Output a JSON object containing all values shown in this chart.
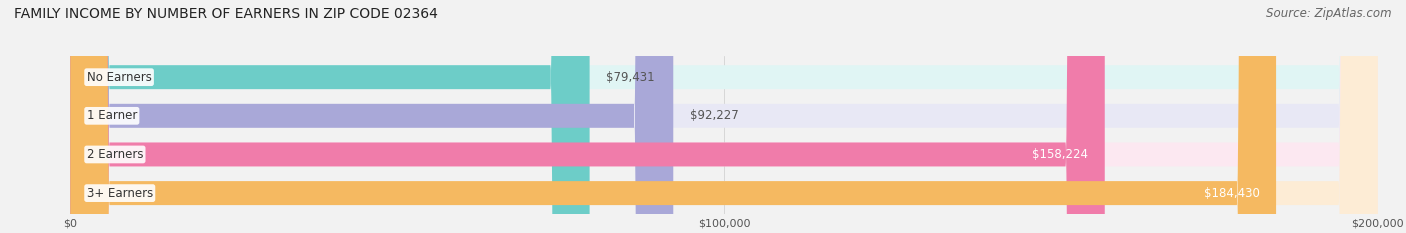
{
  "title": "FAMILY INCOME BY NUMBER OF EARNERS IN ZIP CODE 02364",
  "source": "Source: ZipAtlas.com",
  "categories": [
    "No Earners",
    "1 Earner",
    "2 Earners",
    "3+ Earners"
  ],
  "values": [
    79431,
    92227,
    158224,
    184430
  ],
  "bar_colors": [
    "#6dcdc8",
    "#a9a8d8",
    "#f07caa",
    "#f5b961"
  ],
  "bar_bg_colors": [
    "#e0f5f4",
    "#e8e8f5",
    "#fce8f1",
    "#fdecd5"
  ],
  "value_labels": [
    "$79,431",
    "$92,227",
    "$158,224",
    "$184,430"
  ],
  "xlim": [
    0,
    200000
  ],
  "xticks": [
    0,
    100000,
    200000
  ],
  "xtick_labels": [
    "$0",
    "$100,000",
    "$200,000"
  ],
  "title_fontsize": 10,
  "source_fontsize": 8.5,
  "label_fontsize": 8.5,
  "value_fontsize": 8.5,
  "background_color": "#f2f2f2"
}
